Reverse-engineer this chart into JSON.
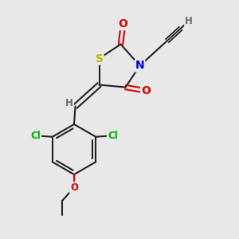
{
  "bg_color": "#e8e8e8",
  "atom_colors": {
    "S": "#b8b800",
    "N": "#0000cc",
    "O": "#dd0000",
    "Cl": "#00aa00",
    "C": "#222222",
    "H": "#607070"
  },
  "bond_lw": 1.5,
  "font_size_main": 10,
  "font_size_sub": 8.5
}
